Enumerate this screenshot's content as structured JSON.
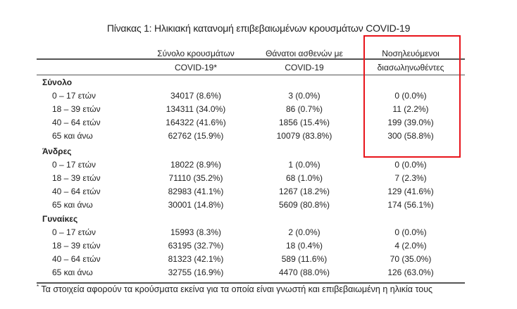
{
  "title": "Πίνακας 1: Ηλικιακή κατανομή επιβεβαιωμένων κρουσμάτων COVID-19",
  "columns": [
    {
      "line1": "Σύνολο κρουσμάτων",
      "line2": "COVID-19*"
    },
    {
      "line1": "Θάνατοι ασθενών με",
      "line2": "COVID-19"
    },
    {
      "line1": "Νοσηλευόμενοι",
      "line2": "διασωληνωθέντες"
    }
  ],
  "highlight_color": "#e8141b",
  "groups": [
    {
      "name": "Σύνολο",
      "rows": [
        {
          "label": "0 – 17 ετών",
          "values": [
            "34017 (8.6%)",
            "3 (0.0%)",
            "0 (0.0%)"
          ]
        },
        {
          "label": "18 – 39 ετών",
          "values": [
            "134311 (34.0%)",
            "86 (0.7%)",
            "11 (2.2%)"
          ]
        },
        {
          "label": "40 – 64 ετών",
          "values": [
            "164322 (41.6%)",
            "1856 (15.4%)",
            "199 (39.0%)"
          ]
        },
        {
          "label": "65 και άνω",
          "values": [
            "62762 (15.9%)",
            "10079 (83.8%)",
            "300 (58.8%)"
          ]
        }
      ]
    },
    {
      "name": "Άνδρες",
      "rows": [
        {
          "label": "0 – 17 ετών",
          "values": [
            "18022 (8.9%)",
            "1 (0.0%)",
            "0 (0.0%)"
          ]
        },
        {
          "label": "18 – 39 ετών",
          "values": [
            "71110 (35.2%)",
            "68 (1.0%)",
            "7 (2.3%)"
          ]
        },
        {
          "label": "40 – 64 ετών",
          "values": [
            "82983 (41.1%)",
            "1267 (18.2%)",
            "129 (41.6%)"
          ]
        },
        {
          "label": "65 και άνω",
          "values": [
            "30001 (14.8%)",
            "5609 (80.8%)",
            "174 (56.1%)"
          ]
        }
      ]
    },
    {
      "name": "Γυναίκες",
      "rows": [
        {
          "label": "0 – 17 ετών",
          "values": [
            "15993 (8.3%)",
            "2 (0.0%)",
            "0 (0.0%)"
          ]
        },
        {
          "label": "18 – 39 ετών",
          "values": [
            "63195 (32.7%)",
            "18 (0.4%)",
            "4 (2.0%)"
          ]
        },
        {
          "label": "40 – 64 ετών",
          "values": [
            "81323 (42.1%)",
            "589 (11.6%)",
            "70 (35.0%)"
          ]
        },
        {
          "label": "65 και άνω",
          "values": [
            "32755 (16.9%)",
            "4470 (88.0%)",
            "126 (63.0%)"
          ]
        }
      ]
    }
  ],
  "footnote": {
    "marker": "*",
    "text": "Τα στοιχεία αφορούν τα κρούσματα εκείνα για τα οποία είναι γνωστή και επιβεβαιωμένη η ηλικία τους"
  }
}
